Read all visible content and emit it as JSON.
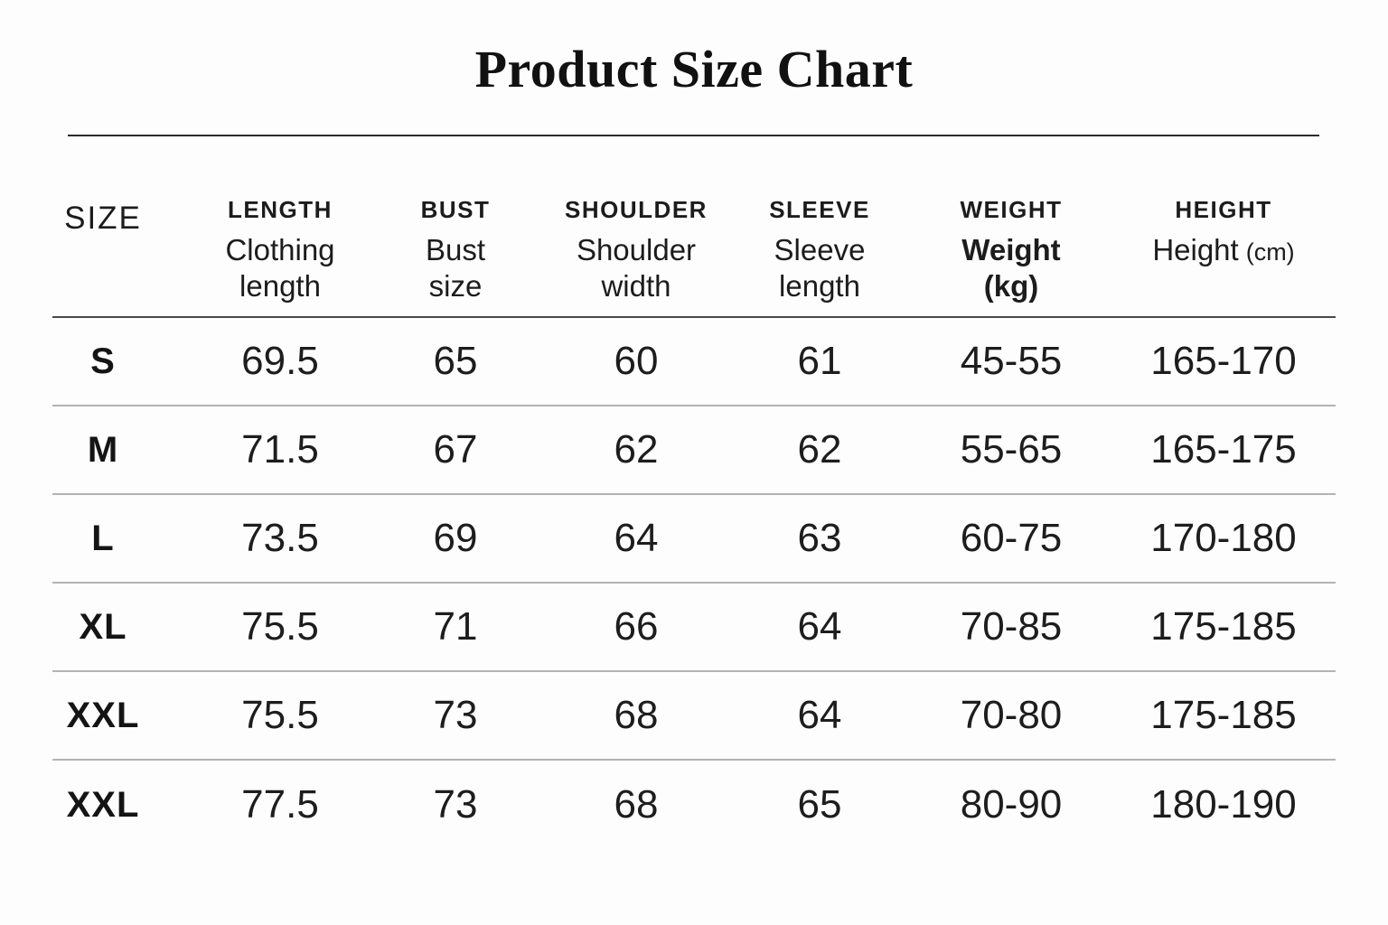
{
  "title": "Product Size Chart",
  "colors": {
    "background": "#fdfdfd",
    "text": "#1a1a1a",
    "title_rule": "#2b2b2b",
    "header_rule": "#474747",
    "row_rule": "#b3b3b3"
  },
  "chart_data": {
    "type": "table",
    "title": "Product Size Chart",
    "columns": [
      {
        "id": "size",
        "label": "SIZE",
        "sub_lines": []
      },
      {
        "id": "length",
        "label": "LENGTH",
        "sub_lines": [
          "Clothing",
          "length"
        ]
      },
      {
        "id": "bust",
        "label": "BUST",
        "sub_lines": [
          "Bust",
          "size"
        ]
      },
      {
        "id": "shoulder",
        "label": "SHOULDER",
        "sub_lines": [
          "Shoulder",
          "width"
        ]
      },
      {
        "id": "sleeve",
        "label": "SLEEVE",
        "sub_lines": [
          "Sleeve",
          "length"
        ]
      },
      {
        "id": "weight",
        "label": "WEIGHT",
        "sub_lines": [
          "Weight",
          "(kg)"
        ],
        "sub_bold": true
      },
      {
        "id": "height",
        "label": "HEIGHT",
        "sub_lines": [
          "Height"
        ],
        "sub_unit": "(cm)"
      }
    ],
    "rows": [
      {
        "size": "S",
        "values": [
          "69.5",
          "65",
          "60",
          "61",
          "45-55",
          "165-170"
        ]
      },
      {
        "size": "M",
        "values": [
          "71.5",
          "67",
          "62",
          "62",
          "55-65",
          "165-175"
        ]
      },
      {
        "size": "L",
        "values": [
          "73.5",
          "69",
          "64",
          "63",
          "60-75",
          "170-180"
        ]
      },
      {
        "size": "XL",
        "values": [
          "75.5",
          "71",
          "66",
          "64",
          "70-85",
          "175-185"
        ]
      },
      {
        "size": "XXL",
        "values": [
          "75.5",
          "73",
          "68",
          "64",
          "70-80",
          "175-185"
        ]
      },
      {
        "size": "XXL",
        "values": [
          "77.5",
          "73",
          "68",
          "65",
          "80-90",
          "180-190"
        ]
      }
    ]
  }
}
